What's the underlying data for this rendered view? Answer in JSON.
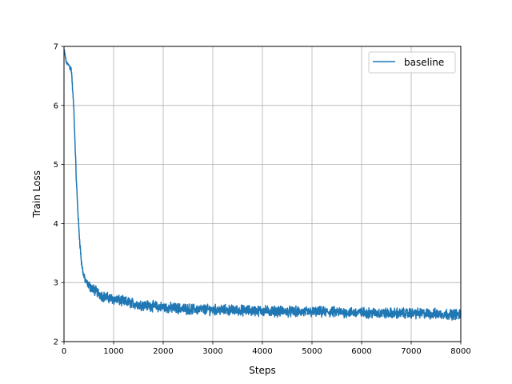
{
  "chart_data": {
    "type": "line",
    "title": "",
    "xlabel": "Steps",
    "ylabel": "Train Loss",
    "xlim": [
      0,
      8000
    ],
    "ylim": [
      2,
      7
    ],
    "xticks": [
      0,
      1000,
      2000,
      3000,
      4000,
      5000,
      6000,
      7000,
      8000
    ],
    "yticks": [
      2,
      3,
      4,
      5,
      6,
      7
    ],
    "xtick_labels": [
      "0",
      "1000",
      "2000",
      "3000",
      "4000",
      "5000",
      "6000",
      "7000",
      "8000"
    ],
    "ytick_labels": [
      "2",
      "3",
      "4",
      "5",
      "6",
      "7"
    ],
    "grid": true,
    "legend": {
      "position": "top-right",
      "entries": [
        "baseline"
      ]
    },
    "series": [
      {
        "name": "baseline",
        "color": "#1f77b4",
        "x": [
          0,
          50,
          100,
          150,
          200,
          250,
          300,
          350,
          400,
          450,
          500,
          600,
          700,
          800,
          1000,
          1200,
          1500,
          2000,
          2500,
          3000,
          3500,
          4000,
          4500,
          5000,
          5500,
          6000,
          6500,
          7000,
          7500,
          8000
        ],
        "y": [
          6.95,
          6.72,
          6.68,
          6.6,
          5.9,
          4.7,
          3.9,
          3.35,
          3.1,
          3.0,
          2.95,
          2.88,
          2.82,
          2.76,
          2.72,
          2.68,
          2.63,
          2.58,
          2.55,
          2.54,
          2.53,
          2.52,
          2.51,
          2.5,
          2.5,
          2.49,
          2.48,
          2.48,
          2.47,
          2.46
        ],
        "noise_amplitude": 0.07
      }
    ]
  }
}
